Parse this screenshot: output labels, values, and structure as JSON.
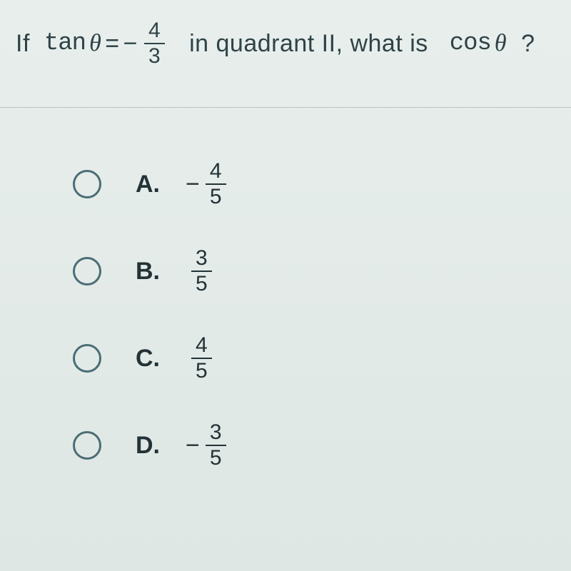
{
  "question": {
    "prefix": "If",
    "fn1": "tan",
    "theta1": "θ",
    "eq": " = ",
    "neg": "−",
    "tan_num": "4",
    "tan_den": "3",
    "middle": "in quadrant II, what is",
    "fn2": "cos",
    "theta2": "θ",
    "qmark": "?"
  },
  "choices": [
    {
      "label": "A.",
      "sign": "−",
      "num": "4",
      "den": "5"
    },
    {
      "label": "B.",
      "sign": "",
      "num": "3",
      "den": "5"
    },
    {
      "label": "C.",
      "sign": "",
      "num": "4",
      "den": "5"
    },
    {
      "label": "D.",
      "sign": "−",
      "num": "3",
      "den": "5"
    }
  ],
  "colors": {
    "bg_top": "#e8eeec",
    "bg_bottom": "#dee7e4",
    "text": "#2f4347",
    "divider": "#b8c6c3",
    "radio_border": "#4b6d75"
  },
  "typography": {
    "question_fontsize": 34,
    "choice_label_fontsize": 34,
    "fraction_fontsize": 30
  }
}
